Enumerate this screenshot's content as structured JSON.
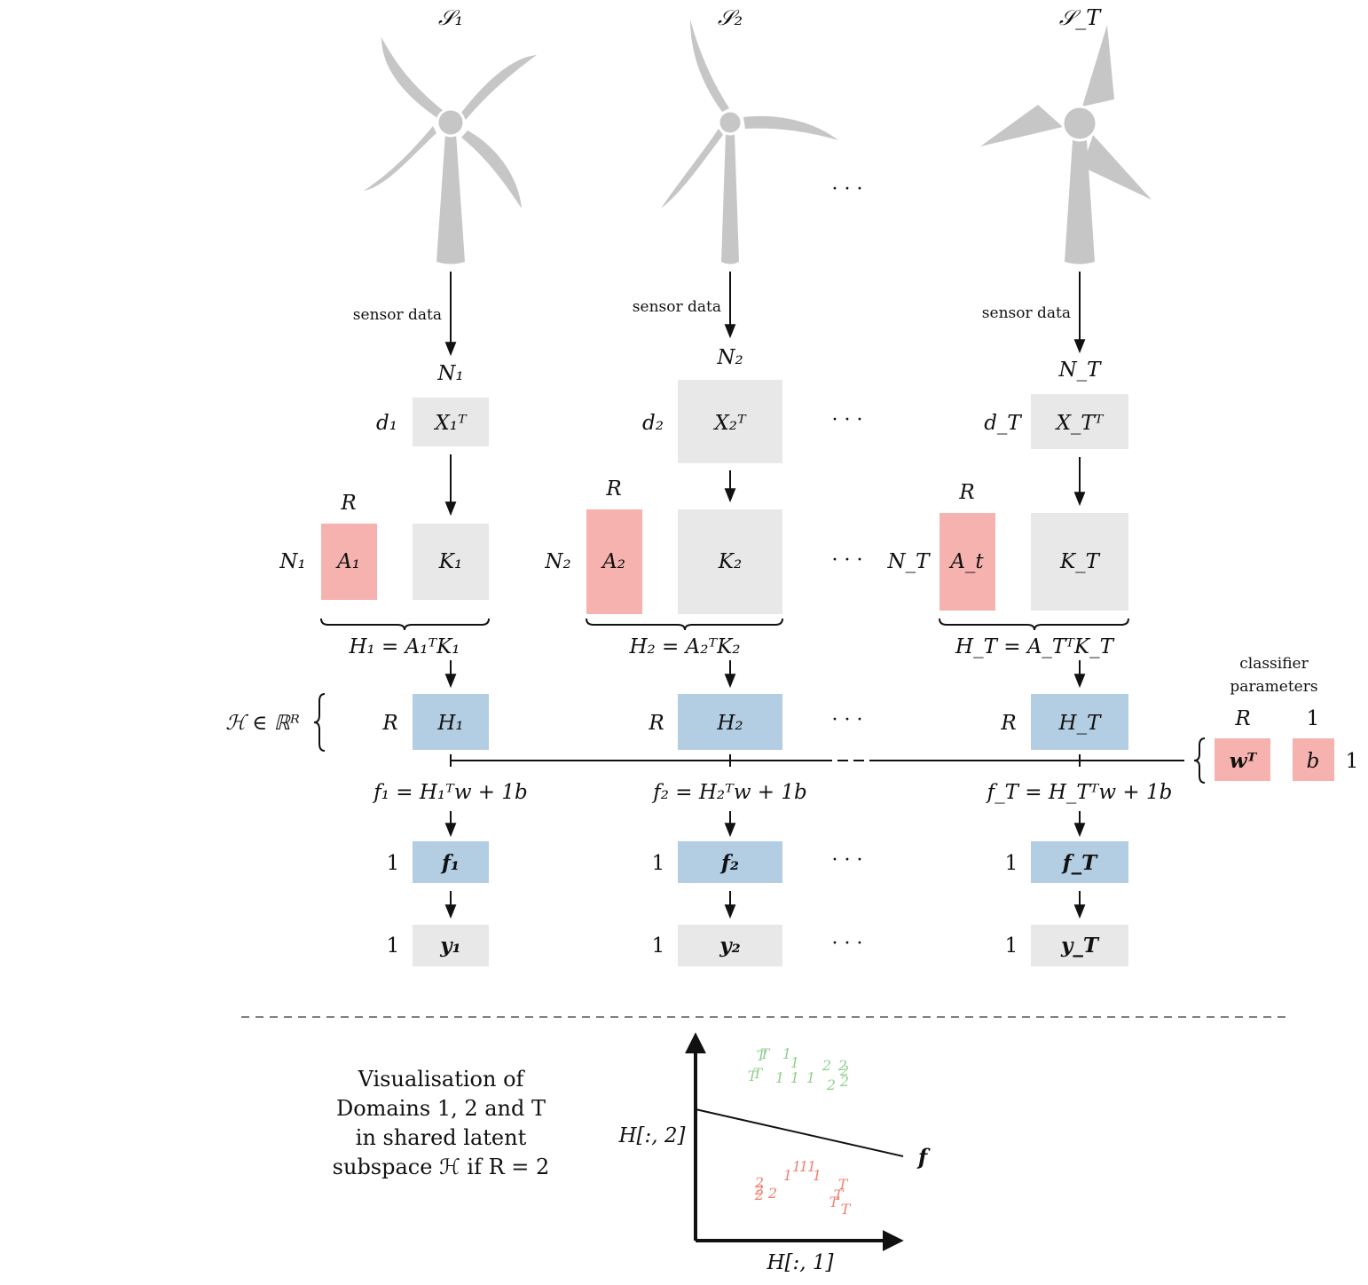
{
  "turbines": [
    {
      "label": "𝒮₁",
      "sensor": "sensor data",
      "n": "N₁",
      "d": "d₁",
      "x": "X₁ᵀ",
      "r": "R",
      "a": "A₁",
      "k": "K₁",
      "brace": "H₁ = A₁ᵀK₁",
      "hr": "R",
      "h": "H₁",
      "f_eq": "f₁ = H₁ᵀw + 1b",
      "f_dim": "1",
      "f": "f₁",
      "y_dim": "1",
      "y": "y₁",
      "n_side": "N₁"
    },
    {
      "label": "𝒮₂",
      "sensor": "sensor data",
      "n": "N₂",
      "d": "d₂",
      "x": "X₂ᵀ",
      "r": "R",
      "a": "A₂",
      "k": "K₂",
      "brace": "H₂ = A₂ᵀK₂",
      "hr": "R",
      "h": "H₂",
      "f_eq": "f₂ = H₂ᵀw + 1b",
      "f_dim": "1",
      "f": "f₂",
      "y_dim": "1",
      "y": "y₂",
      "n_side": "N₂"
    },
    {
      "label": "𝒮_T",
      "sensor": "sensor data",
      "n": "N_T",
      "d": "d_T",
      "x": "X_Tᵀ",
      "r": "R",
      "a": "A_t",
      "k": "K_T",
      "brace": "H_T = A_TᵀK_T",
      "hr": "R",
      "h": "H_T",
      "f_eq": "f_T = H_Tᵀw + 1b",
      "f_dim": "1",
      "f": "f_T",
      "y_dim": "1",
      "y": "y_T",
      "n_side": "N_T"
    }
  ],
  "ellipsis": "· · ·",
  "latent_space": "ℋ ∈ ℝᴿ",
  "classifier": {
    "title_line1": "classifier",
    "title_line2": "parameters",
    "r": "R",
    "one": "1",
    "w": "wᵀ",
    "b": "b",
    "side": "1"
  },
  "visualisation": {
    "line1": "Visualisation of",
    "line2": "Domains 1, 2 and T",
    "line3": "in shared latent",
    "line4": "subspace ℋ if R = 2",
    "ylabel": "H[:, 2]",
    "xlabel": "H[:, 1]",
    "line_label": "f",
    "points": [
      {
        "t": "T",
        "x": 858,
        "y": 1195,
        "c": "green"
      },
      {
        "t": "T",
        "x": 862,
        "y": 1193,
        "c": "green"
      },
      {
        "t": "1",
        "x": 887,
        "y": 1193,
        "c": "green"
      },
      {
        "t": "1",
        "x": 896,
        "y": 1203,
        "c": "green"
      },
      {
        "t": "T",
        "x": 848,
        "y": 1218,
        "c": "green"
      },
      {
        "t": "T",
        "x": 854,
        "y": 1215,
        "c": "green"
      },
      {
        "t": "1",
        "x": 879,
        "y": 1220,
        "c": "green"
      },
      {
        "t": "1",
        "x": 896,
        "y": 1220,
        "c": "green"
      },
      {
        "t": "1",
        "x": 914,
        "y": 1220,
        "c": "green"
      },
      {
        "t": "2",
        "x": 932,
        "y": 1206,
        "c": "green"
      },
      {
        "t": "2",
        "x": 950,
        "y": 1206,
        "c": "green"
      },
      {
        "t": "2",
        "x": 952,
        "y": 1212,
        "c": "green"
      },
      {
        "t": "2",
        "x": 937,
        "y": 1228,
        "c": "green"
      },
      {
        "t": "2",
        "x": 952,
        "y": 1224,
        "c": "green"
      },
      {
        "t": "1",
        "x": 888,
        "y": 1330,
        "c": "red"
      },
      {
        "t": "1",
        "x": 898,
        "y": 1320,
        "c": "red"
      },
      {
        "t": "1",
        "x": 906,
        "y": 1320,
        "c": "red"
      },
      {
        "t": "1",
        "x": 915,
        "y": 1320,
        "c": "red"
      },
      {
        "t": "1",
        "x": 921,
        "y": 1330,
        "c": "red"
      },
      {
        "t": "2",
        "x": 856,
        "y": 1338,
        "c": "red"
      },
      {
        "t": "2",
        "x": 856,
        "y": 1346,
        "c": "red"
      },
      {
        "t": "2",
        "x": 856,
        "y": 1352,
        "c": "red"
      },
      {
        "t": "2",
        "x": 871,
        "y": 1350,
        "c": "red"
      },
      {
        "t": "T",
        "x": 950,
        "y": 1340,
        "c": "red"
      },
      {
        "t": "T",
        "x": 945,
        "y": 1352,
        "c": "red"
      },
      {
        "t": "T",
        "x": 940,
        "y": 1360,
        "c": "red"
      },
      {
        "t": "T",
        "x": 953,
        "y": 1368,
        "c": "red"
      }
    ]
  },
  "colors": {
    "grey_box": "#e8e8e8",
    "red_box": "#f6b2ae",
    "blue_box": "#b3cde3",
    "turbine": "#c6c6c6",
    "green_pt": "#8fd08f",
    "red_pt": "#f08070"
  }
}
